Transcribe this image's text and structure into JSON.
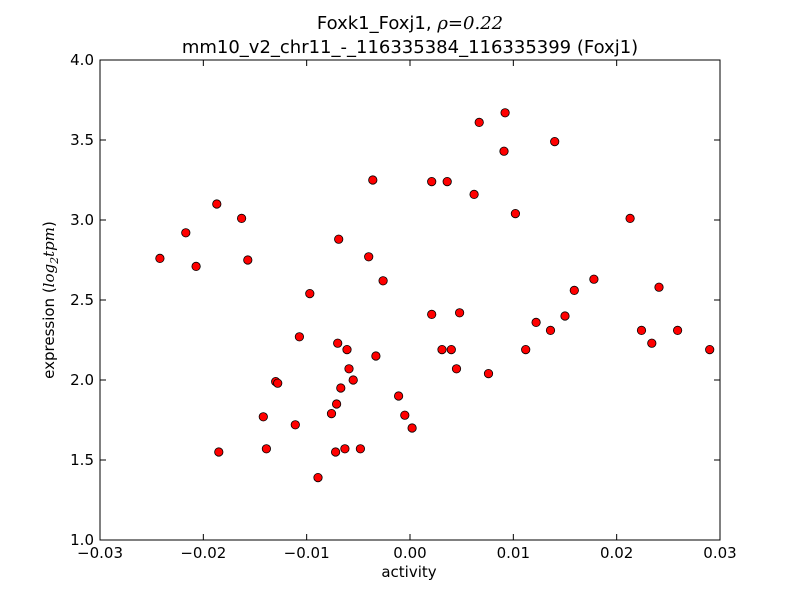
{
  "chart_data": {
    "type": "scatter",
    "title": "Foxk1_Foxj1, ρ=0.22",
    "title_prefix": "Foxk1_Foxj1, ",
    "title_rho_symbol": "ρ",
    "title_rho_eq": "=",
    "title_rho_value": "0.22",
    "subtitle": "mm10_v2_chr11_-_116335384_116335399 (Foxj1)",
    "xlabel": "activity",
    "ylabel": "expression (log₂tpm)",
    "ylabel_prefix": "expression (",
    "ylabel_math": "log",
    "ylabel_sub": "2",
    "ylabel_math2": "tpm",
    "ylabel_suffix": ")",
    "xlim": [
      -0.03,
      0.03
    ],
    "ylim": [
      1.0,
      4.0
    ],
    "xticks": [
      -0.03,
      -0.02,
      -0.01,
      0.0,
      0.01,
      0.02,
      0.03
    ],
    "xtick_labels": [
      "−0.03",
      "−0.02",
      "−0.01",
      "0.00",
      "0.01",
      "0.02",
      "0.03"
    ],
    "yticks": [
      1.0,
      1.5,
      2.0,
      2.5,
      3.0,
      3.5,
      4.0
    ],
    "ytick_labels": [
      "1.0",
      "1.5",
      "2.0",
      "2.5",
      "3.0",
      "3.5",
      "4.0"
    ],
    "grid": false,
    "marker_color": "#ff0000",
    "marker_edge_color": "#000000",
    "points": [
      [
        -0.0242,
        2.76
      ],
      [
        -0.0217,
        2.92
      ],
      [
        -0.0207,
        2.71
      ],
      [
        -0.0187,
        3.1
      ],
      [
        -0.0185,
        1.55
      ],
      [
        -0.0163,
        3.01
      ],
      [
        -0.0157,
        2.75
      ],
      [
        -0.0142,
        1.77
      ],
      [
        -0.0139,
        1.57
      ],
      [
        -0.013,
        1.99
      ],
      [
        -0.0128,
        1.98
      ],
      [
        -0.0111,
        1.72
      ],
      [
        -0.0107,
        2.27
      ],
      [
        -0.0097,
        2.54
      ],
      [
        -0.0089,
        1.39
      ],
      [
        -0.0076,
        1.79
      ],
      [
        -0.0071,
        1.85
      ],
      [
        -0.0069,
        2.88
      ],
      [
        -0.007,
        2.23
      ],
      [
        -0.0067,
        1.95
      ],
      [
        -0.0072,
        1.55
      ],
      [
        -0.0063,
        1.57
      ],
      [
        -0.0061,
        2.19
      ],
      [
        -0.0059,
        2.07
      ],
      [
        -0.0055,
        2.0
      ],
      [
        -0.0048,
        1.57
      ],
      [
        -0.004,
        2.77
      ],
      [
        -0.0036,
        3.25
      ],
      [
        -0.0033,
        2.15
      ],
      [
        -0.0026,
        2.62
      ],
      [
        -0.0011,
        1.9
      ],
      [
        -0.0005,
        1.78
      ],
      [
        0.0002,
        1.7
      ],
      [
        0.0021,
        3.24
      ],
      [
        0.0021,
        2.41
      ],
      [
        0.0031,
        2.19
      ],
      [
        0.0036,
        3.24
      ],
      [
        0.004,
        2.19
      ],
      [
        0.0045,
        2.07
      ],
      [
        0.0048,
        2.42
      ],
      [
        0.0062,
        3.16
      ],
      [
        0.0067,
        3.61
      ],
      [
        0.0076,
        2.04
      ],
      [
        0.0091,
        3.43
      ],
      [
        0.0092,
        3.67
      ],
      [
        0.0102,
        3.04
      ],
      [
        0.0112,
        2.19
      ],
      [
        0.0122,
        2.36
      ],
      [
        0.0136,
        2.31
      ],
      [
        0.014,
        3.49
      ],
      [
        0.015,
        2.4
      ],
      [
        0.0159,
        2.56
      ],
      [
        0.0178,
        2.63
      ],
      [
        0.0213,
        3.01
      ],
      [
        0.0224,
        2.31
      ],
      [
        0.0234,
        2.23
      ],
      [
        0.0241,
        2.58
      ],
      [
        0.0259,
        2.31
      ],
      [
        0.029,
        2.19
      ]
    ]
  }
}
